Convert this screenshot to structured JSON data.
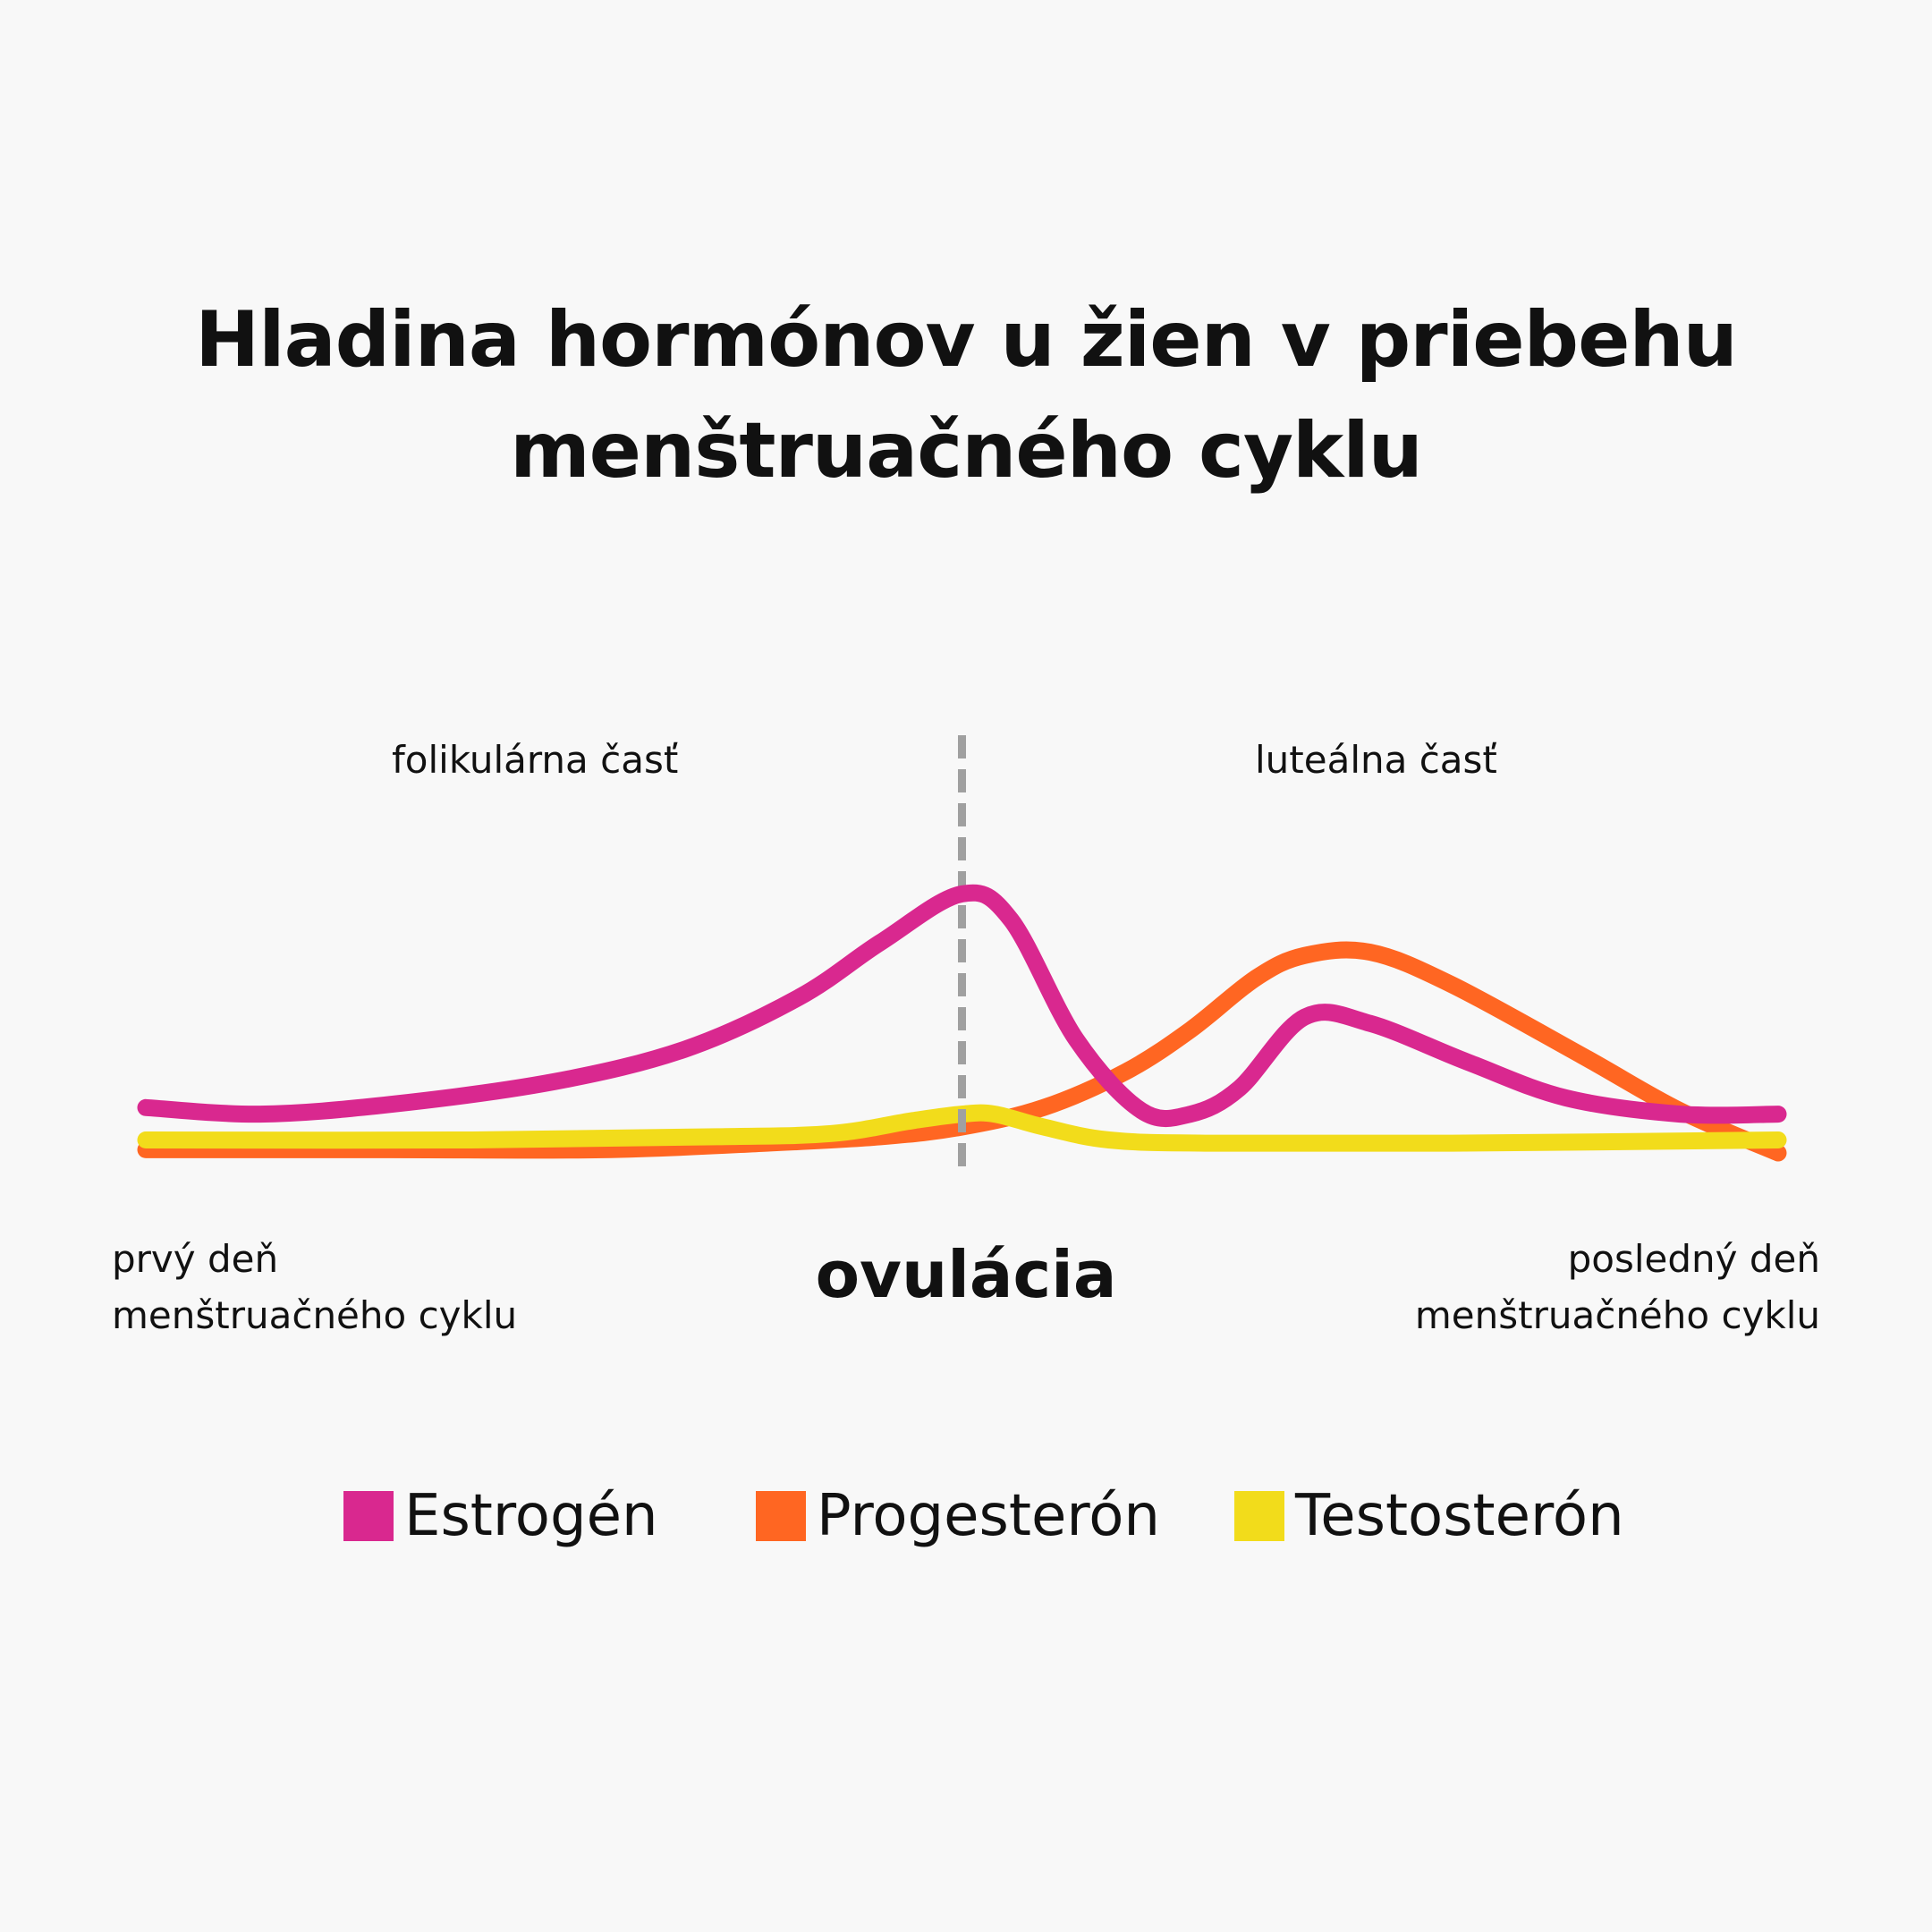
{
  "title": {
    "line1": "Hladina hormónov u žien v priebehu",
    "line2": "menštruačného cyklu"
  },
  "labels": {
    "follicular": "folikulárna časť",
    "luteal": "luteálna časť",
    "first_day_line1": "prvý deň",
    "first_day_line2": "menštruačného cyklu",
    "last_day_line1": "posledný deň",
    "last_day_line2": "menštruačného cyklu",
    "ovulation": "ovulácia"
  },
  "colors": {
    "estrogen": "#d9288f",
    "progesterone": "#ff6622",
    "testosterone": "#f2dc1b",
    "ovulation_line": "#a0a0a0",
    "background": "#f8f8f8"
  },
  "chart_data": {
    "type": "line",
    "x_range": [
      0,
      100
    ],
    "y_range": [
      0,
      100
    ],
    "axes_visible": false,
    "grid": false,
    "ovulation_x": 50,
    "legend_position": "bottom",
    "series": [
      {
        "name": "Estrogén",
        "color": "#d9288f",
        "x": [
          0,
          7,
          15,
          25,
          33,
          40,
          45,
          50,
          53,
          57,
          61,
          64,
          67,
          71,
          75,
          81,
          87,
          94,
          100
        ],
        "y": [
          14,
          12,
          15,
          22,
          32,
          48,
          65,
          80,
          72,
          35,
          13,
          12,
          20,
          42,
          40,
          28,
          17,
          12,
          12
        ]
      },
      {
        "name": "Progesterón",
        "color": "#ff6622",
        "x": [
          0,
          15,
          28,
          38,
          45,
          50,
          55,
          60,
          64,
          68,
          71,
          75,
          80,
          88,
          94,
          100
        ],
        "y": [
          1,
          1,
          1,
          3,
          5,
          8,
          14,
          25,
          38,
          54,
          61,
          62,
          52,
          30,
          13,
          0
        ]
      },
      {
        "name": "Testosterón",
        "color": "#f2dc1b",
        "x": [
          0,
          20,
          35,
          42,
          47,
          50,
          52,
          55,
          59,
          65,
          80,
          100
        ],
        "y": [
          4,
          4,
          5,
          6,
          10,
          12,
          12,
          8,
          4,
          3,
          3,
          4
        ]
      }
    ]
  },
  "legend": [
    {
      "label": "Estrogén",
      "color": "#d9288f"
    },
    {
      "label": "Progesterón",
      "color": "#ff6622"
    },
    {
      "label": "Testosterón",
      "color": "#f2dc1b"
    }
  ]
}
